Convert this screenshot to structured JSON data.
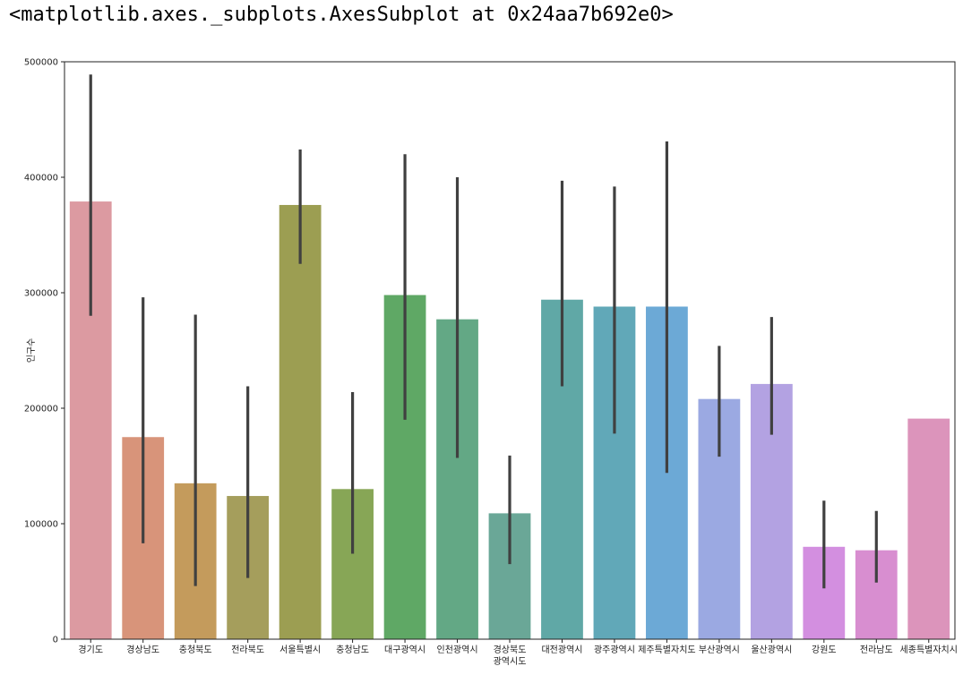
{
  "output_repr": "<matplotlib.axes._subplots.AxesSubplot at 0x24aa7b692e0>",
  "chart_data": {
    "type": "bar",
    "title": "",
    "xlabel": "",
    "ylabel": "인구수",
    "ylim": [
      0,
      500000
    ],
    "yticks": [
      0,
      100000,
      200000,
      300000,
      400000,
      500000
    ],
    "ytick_labels": [
      "0",
      "100000",
      "200000",
      "300000",
      "400000",
      "500000"
    ],
    "grid": false,
    "categories": [
      "경기도",
      "경상남도",
      "충청북도",
      "전라북도",
      "서울특별시",
      "충청남도",
      "대구광역시",
      "인천광역시",
      "경상북도\n광역시도",
      "대전광역시",
      "광주광역시",
      "제주특별자치도",
      "부산광역시",
      "울산광역시",
      "강원도",
      "전라남도",
      "세종특별자치시"
    ],
    "values": [
      379000,
      175000,
      135000,
      124000,
      376000,
      130000,
      298000,
      277000,
      109000,
      294000,
      288000,
      288000,
      208000,
      221000,
      80000,
      77000,
      191000
    ],
    "ci_low": [
      280000,
      83000,
      46000,
      53000,
      325000,
      74000,
      190000,
      157000,
      65000,
      219000,
      178000,
      144000,
      158000,
      177000,
      44000,
      49000,
      null
    ],
    "ci_high": [
      489000,
      296000,
      281000,
      219000,
      424000,
      214000,
      420000,
      400000,
      159000,
      397000,
      392000,
      431000,
      254000,
      279000,
      120000,
      111000,
      null
    ],
    "colors": [
      "#dc9aa1",
      "#d8947a",
      "#c49b5c",
      "#a59e5c",
      "#9c9e52",
      "#87a656",
      "#5fa865",
      "#63a885",
      "#6aa797",
      "#60a8a6",
      "#61a8b8",
      "#6ca9d6",
      "#9ba9e2",
      "#b3a2e2",
      "#d38fe0",
      "#d88ed0",
      "#dc94bb"
    ]
  }
}
